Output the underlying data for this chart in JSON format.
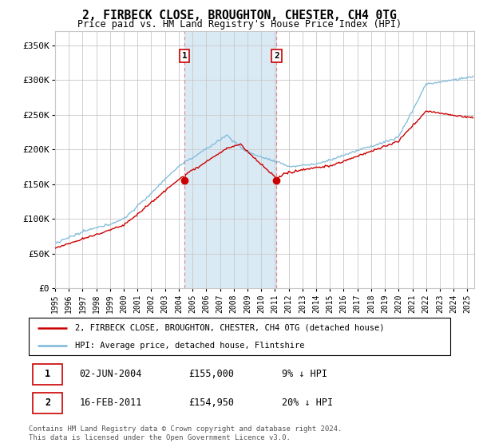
{
  "title": "2, FIRBECK CLOSE, BROUGHTON, CHESTER, CH4 0TG",
  "subtitle": "Price paid vs. HM Land Registry's House Price Index (HPI)",
  "ylabel_ticks": [
    "£0",
    "£50K",
    "£100K",
    "£150K",
    "£200K",
    "£250K",
    "£300K",
    "£350K"
  ],
  "ylim": [
    0,
    370000
  ],
  "xlim_start": 1995.0,
  "xlim_end": 2025.5,
  "transaction1": {
    "date_num": 2004.42,
    "price": 155000,
    "label": "1",
    "date_str": "02-JUN-2004",
    "price_str": "£155,000",
    "hpi_str": "9% ↓ HPI"
  },
  "transaction2": {
    "date_num": 2011.12,
    "price": 154950,
    "label": "2",
    "date_str": "16-FEB-2011",
    "price_str": "£154,950",
    "hpi_str": "20% ↓ HPI"
  },
  "legend_line1": "2, FIRBECK CLOSE, BROUGHTON, CHESTER, CH4 0TG (detached house)",
  "legend_line2": "HPI: Average price, detached house, Flintshire",
  "footnote": "Contains HM Land Registry data © Crown copyright and database right 2024.\nThis data is licensed under the Open Government Licence v3.0.",
  "hpi_color": "#7ab8d9",
  "price_color": "#cc0000",
  "shading_color": "#daeaf5",
  "grid_color": "#c8c8c8",
  "background_color": "#ffffff",
  "vline_color": "#e88080",
  "annotation_box_color": "#cc0000"
}
